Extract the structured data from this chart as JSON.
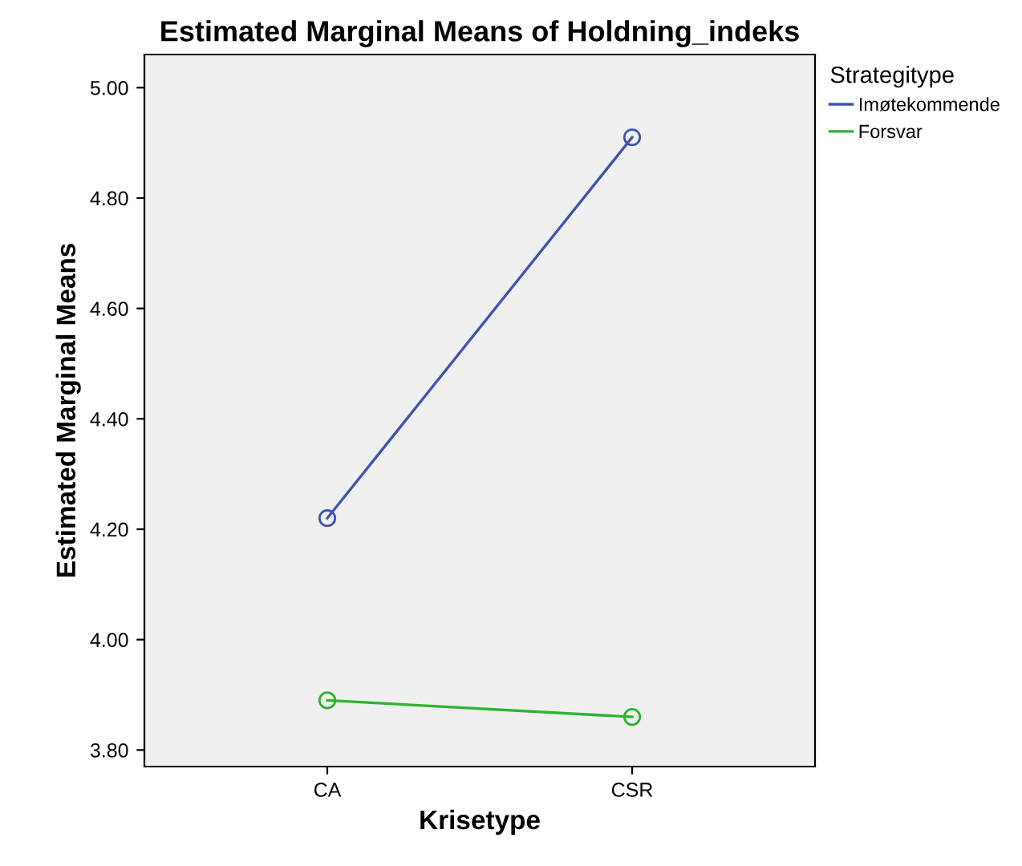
{
  "chart_data": {
    "type": "line",
    "title": "Estimated Marginal Means of Holdning_indeks",
    "xlabel": "Krisetype",
    "ylabel": "Estimated Marginal Means",
    "legend_title": "Strategitype",
    "categories": [
      "CA",
      "CSR"
    ],
    "series": [
      {
        "name": "Imøtekommende",
        "color": "#4053b0",
        "values": [
          4.22,
          4.91
        ]
      },
      {
        "name": "Forsvar",
        "color": "#2cb52c",
        "values": [
          3.89,
          3.86
        ]
      }
    ],
    "ylim": [
      3.77,
      5.06
    ],
    "yticks": [
      {
        "value": 3.8,
        "label": "3.80"
      },
      {
        "value": 4.0,
        "label": "4.00"
      },
      {
        "value": 4.2,
        "label": "4.20"
      },
      {
        "value": 4.4,
        "label": "4.40"
      },
      {
        "value": 4.6,
        "label": "4.60"
      },
      {
        "value": 4.8,
        "label": "4.80"
      },
      {
        "value": 5.0,
        "label": "5.00"
      }
    ],
    "grid": false,
    "legend": "top right",
    "marker": "circle",
    "line_style": "solid"
  }
}
